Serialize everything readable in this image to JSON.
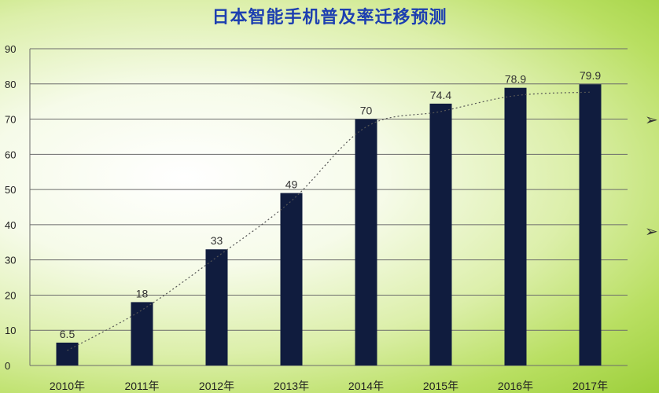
{
  "chart_data": {
    "type": "bar",
    "title": "日本智能手机普及率迁移预测",
    "categories": [
      "2010年",
      "2011年",
      "2012年",
      "2013年",
      "2014年",
      "2015年",
      "2016年",
      "2017年"
    ],
    "values": [
      6.5,
      18,
      33,
      49,
      70,
      74.4,
      78.9,
      79.9
    ],
    "value_labels": [
      "6.5",
      "18",
      "33",
      "49",
      "70",
      "74.4",
      "78.9",
      "79.9"
    ],
    "yticks": [
      0,
      10,
      20,
      30,
      40,
      50,
      60,
      70,
      80,
      90
    ],
    "ylim": [
      0,
      90
    ],
    "grid": true,
    "trendline": "dotted",
    "bar_color": "#101c3e"
  },
  "side_markers": [
    "➢",
    "➢"
  ]
}
